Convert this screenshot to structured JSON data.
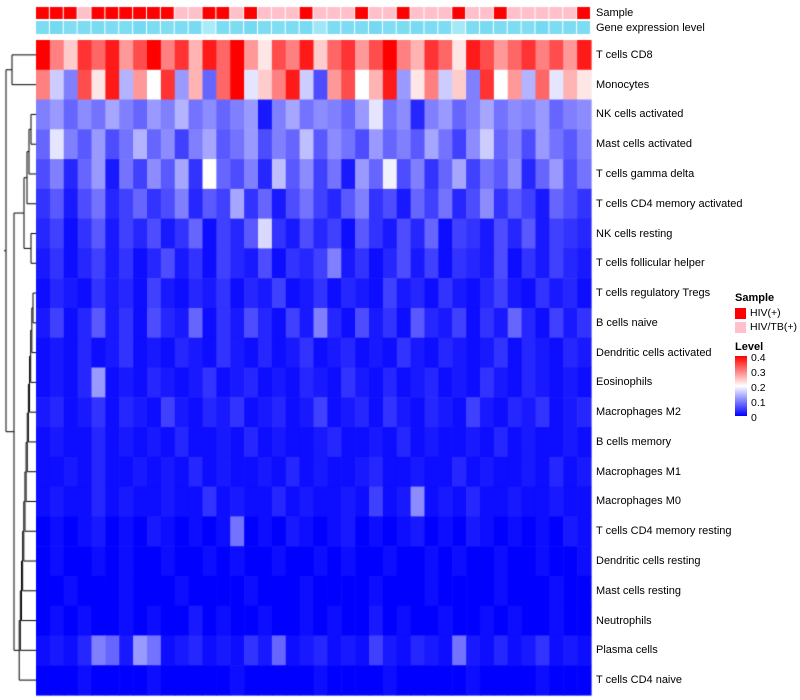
{
  "chart_data": {
    "type": "heatmap",
    "title": "",
    "n_cols": 40,
    "value_range": [
      0,
      0.4
    ],
    "colors": {
      "low": "#0000FF",
      "mid": "#FFFFFF",
      "high": "#FF0000",
      "sample_hiv": "#FF0000",
      "sample_hivtb": "#FFC0CB",
      "gene_low": "#E6FBFF",
      "gene_high": "#6FD8F0"
    },
    "annotation_labels": [
      "Sample",
      "Gene expression level"
    ],
    "sample_groups": [
      "HIV(+)",
      "HIV(+)",
      "HIV(+)",
      "HIV/TB(+)",
      "HIV(+)",
      "HIV(+)",
      "HIV(+)",
      "HIV(+)",
      "HIV(+)",
      "HIV(+)",
      "HIV/TB(+)",
      "HIV/TB(+)",
      "HIV(+)",
      "HIV(+)",
      "HIV/TB(+)",
      "HIV(+)",
      "HIV/TB(+)",
      "HIV/TB(+)",
      "HIV/TB(+)",
      "HIV(+)",
      "HIV/TB(+)",
      "HIV/TB(+)",
      "HIV/TB(+)",
      "HIV(+)",
      "HIV/TB(+)",
      "HIV/TB(+)",
      "HIV(+)",
      "HIV/TB(+)",
      "HIV/TB(+)",
      "HIV/TB(+)",
      "HIV(+)",
      "HIV/TB(+)",
      "HIV/TB(+)",
      "HIV(+)",
      "HIV/TB(+)",
      "HIV/TB(+)",
      "HIV/TB(+)",
      "HIV/TB(+)",
      "HIV/TB(+)",
      "HIV(+)"
    ],
    "gene_expression_level": [
      0.9,
      0.95,
      0.85,
      0.9,
      0.92,
      0.88,
      0.9,
      0.95,
      0.9,
      0.85,
      0.9,
      0.92,
      0.5,
      0.9,
      0.88,
      0.95,
      0.9,
      0.85,
      0.9,
      0.92,
      0.6,
      0.9,
      0.88,
      0.9,
      0.95,
      0.85,
      0.9,
      0.92,
      0.88,
      0.9,
      0.55,
      0.9,
      0.92,
      0.88,
      0.9,
      0.85,
      0.95,
      0.9,
      0.88,
      0.9
    ],
    "rows": [
      "T cells CD8",
      "Monocytes",
      "NK cells activated",
      "Mast cells activated",
      "T cells gamma delta",
      "T cells CD4 memory activated",
      "NK cells resting",
      "T cells follicular helper",
      "T cells regulatory Tregs",
      "B cells naive",
      "Dendritic cells activated",
      "Eosinophils",
      "Macrophages M2",
      "B cells memory",
      "Macrophages M1",
      "Macrophages M0",
      "T cells CD4 memory resting",
      "Dendritic cells resting",
      "Mast cells resting",
      "Neutrophils",
      "Plasma cells",
      "T cells CD4 naive"
    ],
    "matrix": [
      [
        0.4,
        0.3,
        0.24,
        0.36,
        0.32,
        0.38,
        0.28,
        0.34,
        0.4,
        0.3,
        0.36,
        0.26,
        0.38,
        0.32,
        0.4,
        0.28,
        0.22,
        0.34,
        0.3,
        0.38,
        0.24,
        0.32,
        0.36,
        0.28,
        0.34,
        0.4,
        0.3,
        0.26,
        0.36,
        0.32,
        0.22,
        0.38,
        0.34,
        0.28,
        0.32,
        0.36,
        0.3,
        0.34,
        0.28,
        0.38
      ],
      [
        0.3,
        0.16,
        0.1,
        0.34,
        0.22,
        0.38,
        0.14,
        0.28,
        0.2,
        0.36,
        0.12,
        0.26,
        0.08,
        0.32,
        0.4,
        0.18,
        0.24,
        0.3,
        0.38,
        0.16,
        0.06,
        0.28,
        0.34,
        0.2,
        0.26,
        0.38,
        0.12,
        0.22,
        0.3,
        0.16,
        0.24,
        0.1,
        0.36,
        0.2,
        0.28,
        0.14,
        0.32,
        0.18,
        0.26,
        0.22
      ],
      [
        0.1,
        0.12,
        0.08,
        0.11,
        0.09,
        0.13,
        0.1,
        0.08,
        0.12,
        0.1,
        0.14,
        0.09,
        0.11,
        0.08,
        0.1,
        0.12,
        0.02,
        0.1,
        0.13,
        0.09,
        0.11,
        0.1,
        0.08,
        0.12,
        0.18,
        0.09,
        0.11,
        0.03,
        0.1,
        0.12,
        0.08,
        0.1,
        0.13,
        0.09,
        0.11,
        0.1,
        0.12,
        0.08,
        0.1,
        0.11
      ],
      [
        0.08,
        0.18,
        0.1,
        0.07,
        0.12,
        0.06,
        0.09,
        0.14,
        0.08,
        0.11,
        0.05,
        0.1,
        0.13,
        0.07,
        0.09,
        0.12,
        0.06,
        0.1,
        0.08,
        0.15,
        0.07,
        0.11,
        0.09,
        0.06,
        0.12,
        0.08,
        0.1,
        0.07,
        0.13,
        0.09,
        0.05,
        0.11,
        0.16,
        0.08,
        0.1,
        0.06,
        0.12,
        0.09,
        0.07,
        0.1
      ],
      [
        0.06,
        0.1,
        0.03,
        0.08,
        0.12,
        0.02,
        0.09,
        0.05,
        0.11,
        0.07,
        0.13,
        0.04,
        0.2,
        0.08,
        0.06,
        0.1,
        0.03,
        0.15,
        0.07,
        0.11,
        0.05,
        0.09,
        0.02,
        0.12,
        0.08,
        0.19,
        0.06,
        0.1,
        0.04,
        0.08,
        0.13,
        0.05,
        0.09,
        0.07,
        0.11,
        0.03,
        0.08,
        0.12,
        0.06,
        0.09
      ],
      [
        0.04,
        0.07,
        0.02,
        0.06,
        0.09,
        0.03,
        0.05,
        0.08,
        0.04,
        0.06,
        0.1,
        0.03,
        0.07,
        0.05,
        0.13,
        0.04,
        0.08,
        0.02,
        0.06,
        0.09,
        0.05,
        0.03,
        0.07,
        0.1,
        0.04,
        0.06,
        0.02,
        0.08,
        0.05,
        0.09,
        0.03,
        0.06,
        0.11,
        0.04,
        0.07,
        0.05,
        0.02,
        0.08,
        0.06,
        0.04
      ],
      [
        0.03,
        0.05,
        0.01,
        0.04,
        0.07,
        0.02,
        0.05,
        0.03,
        0.06,
        0.02,
        0.04,
        0.08,
        0.01,
        0.05,
        0.03,
        0.07,
        0.17,
        0.04,
        0.02,
        0.06,
        0.03,
        0.05,
        0.01,
        0.07,
        0.04,
        0.02,
        0.06,
        0.03,
        0.08,
        0.01,
        0.05,
        0.04,
        0.02,
        0.06,
        0.03,
        0.07,
        0.02,
        0.05,
        0.04,
        0.03
      ],
      [
        0.02,
        0.04,
        0.01,
        0.03,
        0.05,
        0.02,
        0.04,
        0.01,
        0.03,
        0.06,
        0.02,
        0.04,
        0.01,
        0.05,
        0.03,
        0.02,
        0.06,
        0.01,
        0.04,
        0.03,
        0.05,
        0.1,
        0.02,
        0.04,
        0.01,
        0.03,
        0.06,
        0.02,
        0.05,
        0.01,
        0.04,
        0.03,
        0.02,
        0.06,
        0.01,
        0.04,
        0.02,
        0.05,
        0.03,
        0.02
      ],
      [
        0.01,
        0.03,
        0.02,
        0.01,
        0.04,
        0.02,
        0.03,
        0.01,
        0.05,
        0.02,
        0.01,
        0.03,
        0.02,
        0.04,
        0.01,
        0.03,
        0.02,
        0.05,
        0.01,
        0.02,
        0.04,
        0.01,
        0.03,
        0.02,
        0.01,
        0.05,
        0.02,
        0.03,
        0.01,
        0.04,
        0.02,
        0.01,
        0.03,
        0.05,
        0.02,
        0.01,
        0.04,
        0.02,
        0.03,
        0.01
      ],
      [
        0.02,
        0.05,
        0.01,
        0.03,
        0.07,
        0.02,
        0.04,
        0.01,
        0.06,
        0.03,
        0.02,
        0.08,
        0.01,
        0.04,
        0.02,
        0.06,
        0.03,
        0.01,
        0.05,
        0.02,
        0.1,
        0.03,
        0.01,
        0.06,
        0.02,
        0.04,
        0.01,
        0.07,
        0.03,
        0.02,
        0.05,
        0.01,
        0.04,
        0.02,
        0.08,
        0.03,
        0.01,
        0.05,
        0.02,
        0.04
      ],
      [
        0.01,
        0.02,
        0.01,
        0.03,
        0.01,
        0.02,
        0.04,
        0.01,
        0.02,
        0.01,
        0.03,
        0.02,
        0.01,
        0.04,
        0.02,
        0.01,
        0.03,
        0.01,
        0.02,
        0.04,
        0.01,
        0.02,
        0.03,
        0.01,
        0.02,
        0.01,
        0.04,
        0.02,
        0.01,
        0.03,
        0.02,
        0.01,
        0.02,
        0.04,
        0.01,
        0.03,
        0.02,
        0.01,
        0.03,
        0.02
      ],
      [
        0.01,
        0.02,
        0.01,
        0.03,
        0.12,
        0.01,
        0.02,
        0.01,
        0.03,
        0.02,
        0.01,
        0.02,
        0.04,
        0.01,
        0.02,
        0.03,
        0.01,
        0.02,
        0.01,
        0.03,
        0.02,
        0.01,
        0.04,
        0.02,
        0.01,
        0.03,
        0.01,
        0.02,
        0.03,
        0.01,
        0.02,
        0.01,
        0.04,
        0.02,
        0.01,
        0.03,
        0.02,
        0.01,
        0.02,
        0.01
      ],
      [
        0.02,
        0.03,
        0.01,
        0.02,
        0.04,
        0.01,
        0.03,
        0.02,
        0.01,
        0.05,
        0.02,
        0.01,
        0.03,
        0.02,
        0.04,
        0.01,
        0.02,
        0.03,
        0.01,
        0.02,
        0.05,
        0.01,
        0.02,
        0.03,
        0.01,
        0.04,
        0.02,
        0.01,
        0.03,
        0.02,
        0.01,
        0.05,
        0.02,
        0.01,
        0.03,
        0.02,
        0.04,
        0.01,
        0.02,
        0.03
      ],
      [
        0.01,
        0.02,
        0.01,
        0.01,
        0.03,
        0.01,
        0.02,
        0.01,
        0.02,
        0.01,
        0.03,
        0.01,
        0.01,
        0.02,
        0.01,
        0.03,
        0.01,
        0.02,
        0.01,
        0.01,
        0.02,
        0.03,
        0.01,
        0.01,
        0.02,
        0.01,
        0.03,
        0.01,
        0.02,
        0.01,
        0.01,
        0.02,
        0.01,
        0.03,
        0.01,
        0.02,
        0.01,
        0.01,
        0.02,
        0.01
      ],
      [
        0.01,
        0.01,
        0.02,
        0.01,
        0.03,
        0.01,
        0.01,
        0.02,
        0.01,
        0.02,
        0.01,
        0.03,
        0.01,
        0.02,
        0.01,
        0.01,
        0.02,
        0.01,
        0.03,
        0.01,
        0.02,
        0.01,
        0.01,
        0.02,
        0.03,
        0.01,
        0.01,
        0.02,
        0.01,
        0.01,
        0.03,
        0.01,
        0.02,
        0.01,
        0.01,
        0.02,
        0.01,
        0.03,
        0.01,
        0.02
      ],
      [
        0.01,
        0.02,
        0.01,
        0.01,
        0.03,
        0.01,
        0.02,
        0.01,
        0.01,
        0.02,
        0.01,
        0.01,
        0.04,
        0.01,
        0.02,
        0.01,
        0.01,
        0.03,
        0.01,
        0.02,
        0.01,
        0.01,
        0.02,
        0.01,
        0.05,
        0.01,
        0.02,
        0.11,
        0.01,
        0.02,
        0.01,
        0.03,
        0.01,
        0.01,
        0.02,
        0.01,
        0.01,
        0.02,
        0.01,
        0.01
      ],
      [
        0.0,
        0.01,
        0.0,
        0.01,
        0.02,
        0.0,
        0.01,
        0.0,
        0.02,
        0.01,
        0.0,
        0.01,
        0.0,
        0.01,
        0.09,
        0.0,
        0.01,
        0.0,
        0.02,
        0.01,
        0.0,
        0.01,
        0.02,
        0.0,
        0.01,
        0.0,
        0.01,
        0.02,
        0.0,
        0.01,
        0.0,
        0.02,
        0.01,
        0.0,
        0.01,
        0.0,
        0.01,
        0.0,
        0.02,
        0.01
      ],
      [
        0.0,
        0.01,
        0.0,
        0.0,
        0.01,
        0.0,
        0.01,
        0.0,
        0.0,
        0.01,
        0.0,
        0.0,
        0.01,
        0.0,
        0.01,
        0.0,
        0.0,
        0.01,
        0.0,
        0.0,
        0.01,
        0.0,
        0.01,
        0.0,
        0.0,
        0.01,
        0.0,
        0.0,
        0.01,
        0.0,
        0.01,
        0.0,
        0.0,
        0.01,
        0.0,
        0.0,
        0.01,
        0.0,
        0.0,
        0.01
      ],
      [
        0.0,
        0.0,
        0.01,
        0.0,
        0.0,
        0.0,
        0.01,
        0.0,
        0.0,
        0.0,
        0.01,
        0.0,
        0.0,
        0.0,
        0.0,
        0.01,
        0.0,
        0.0,
        0.0,
        0.01,
        0.0,
        0.0,
        0.0,
        0.0,
        0.01,
        0.0,
        0.0,
        0.0,
        0.01,
        0.0,
        0.0,
        0.0,
        0.0,
        0.01,
        0.0,
        0.0,
        0.0,
        0.01,
        0.0,
        0.0
      ],
      [
        0.0,
        0.01,
        0.0,
        0.01,
        0.0,
        0.0,
        0.01,
        0.0,
        0.01,
        0.0,
        0.0,
        0.02,
        0.0,
        0.01,
        0.0,
        0.0,
        0.01,
        0.0,
        0.0,
        0.01,
        0.0,
        0.01,
        0.0,
        0.0,
        0.02,
        0.0,
        0.01,
        0.0,
        0.0,
        0.01,
        0.0,
        0.0,
        0.01,
        0.0,
        0.01,
        0.0,
        0.0,
        0.01,
        0.0,
        0.0
      ],
      [
        0.01,
        0.02,
        0.01,
        0.03,
        0.1,
        0.08,
        0.02,
        0.12,
        0.09,
        0.01,
        0.02,
        0.03,
        0.01,
        0.02,
        0.01,
        0.04,
        0.02,
        0.08,
        0.01,
        0.02,
        0.03,
        0.01,
        0.02,
        0.01,
        0.05,
        0.02,
        0.01,
        0.03,
        0.02,
        0.01,
        0.09,
        0.02,
        0.01,
        0.03,
        0.01,
        0.02,
        0.04,
        0.01,
        0.02,
        0.01
      ],
      [
        0.0,
        0.0,
        0.0,
        0.01,
        0.0,
        0.0,
        0.0,
        0.0,
        0.01,
        0.0,
        0.0,
        0.0,
        0.0,
        0.0,
        0.01,
        0.0,
        0.0,
        0.0,
        0.0,
        0.0,
        0.01,
        0.0,
        0.0,
        0.0,
        0.0,
        0.01,
        0.0,
        0.0,
        0.0,
        0.0,
        0.0,
        0.01,
        0.0,
        0.0,
        0.0,
        0.0,
        0.01,
        0.0,
        0.0,
        0.0
      ]
    ]
  },
  "legend": {
    "sample": {
      "title": "Sample",
      "entries": [
        {
          "label": "HIV(+)",
          "color": "#FF0000"
        },
        {
          "label": "HIV/TB(+)",
          "color": "#FFC0CB"
        }
      ]
    },
    "level": {
      "title": "Level",
      "ticks": [
        "0.4",
        "0.3",
        "0.2",
        "0.1",
        "0"
      ]
    }
  }
}
